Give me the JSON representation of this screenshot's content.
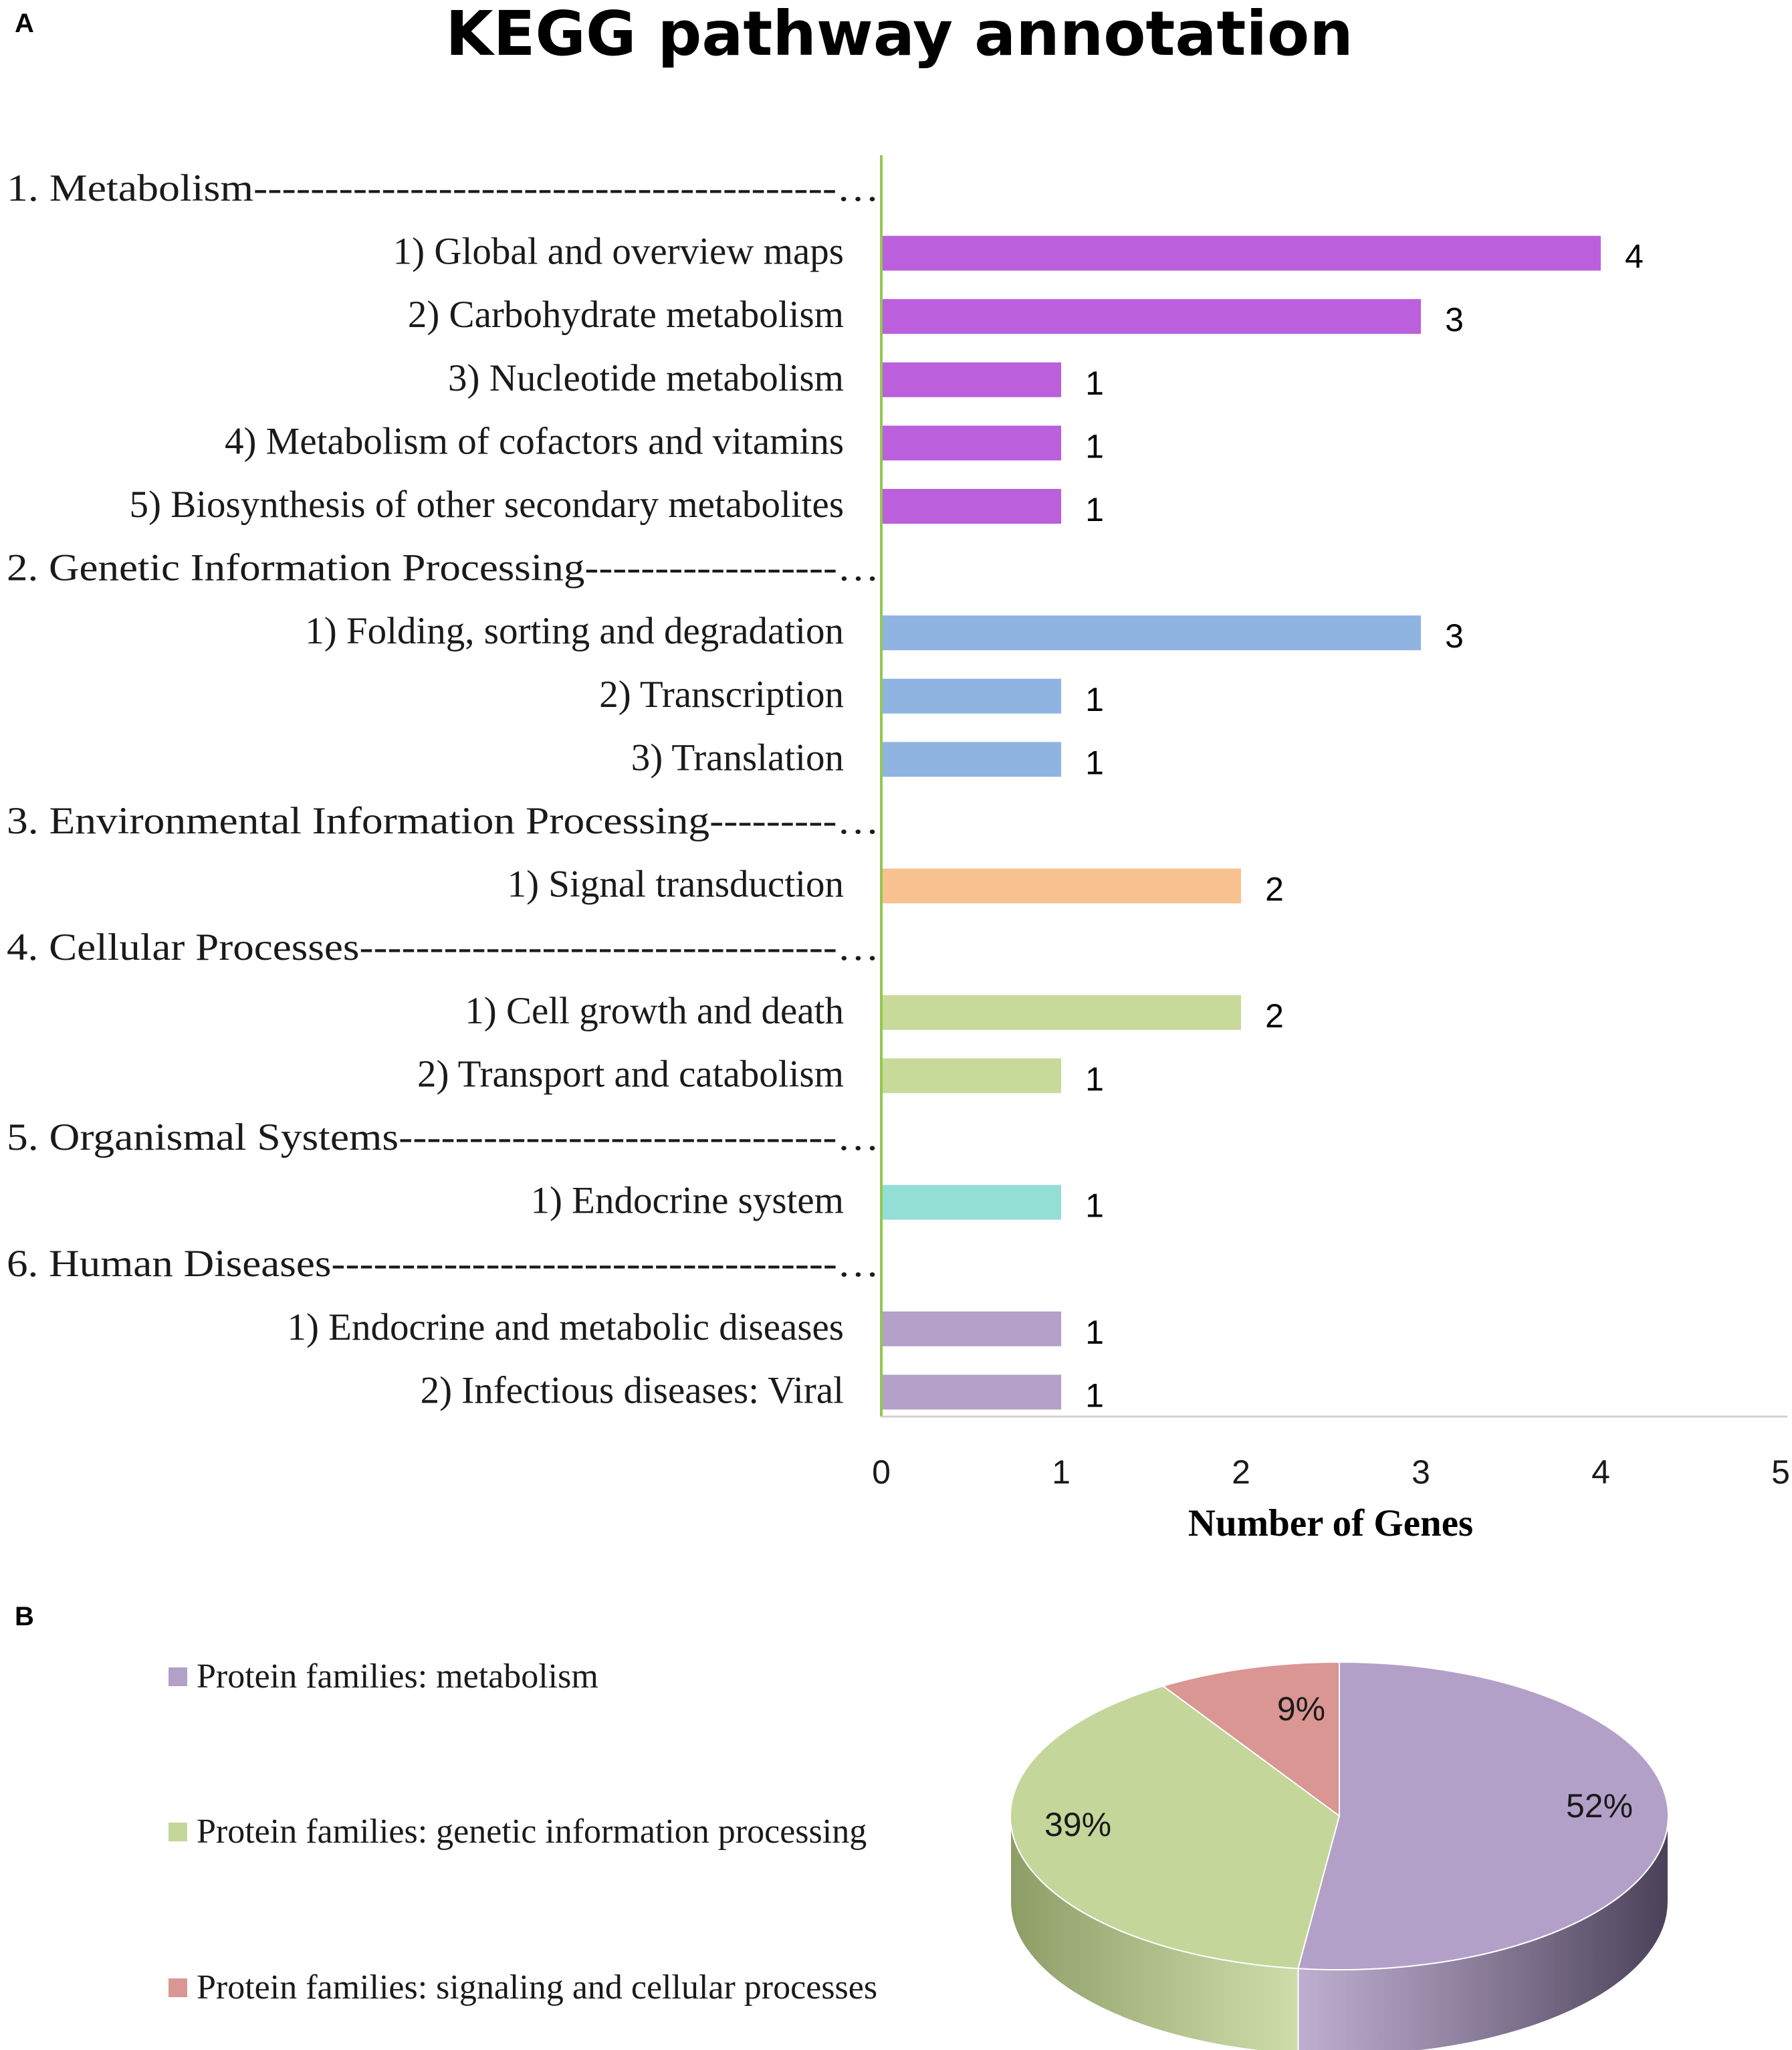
{
  "chart_data": [
    {
      "panel": "A",
      "type": "bar",
      "orientation": "horizontal",
      "title": "KEGG pathway annotation",
      "xlabel": "Number of Genes",
      "ylabel": "",
      "xlim": [
        0,
        5
      ],
      "xticks": [
        "0",
        "1",
        "2",
        "3",
        "4",
        "5"
      ],
      "rows": [
        {
          "label": "1. Metabolism-----------------------------------------…",
          "header": true
        },
        {
          "label": "1) Global and overview maps",
          "value": 4,
          "color": "#bb5fdc"
        },
        {
          "label": "2) Carbohydrate metabolism",
          "value": 3,
          "color": "#bb5fdc"
        },
        {
          "label": "3) Nucleotide metabolism",
          "value": 1,
          "color": "#bb5fdc"
        },
        {
          "label": "4) Metabolism of cofactors and vitamins",
          "value": 1,
          "color": "#bb5fdc"
        },
        {
          "label": "5) Biosynthesis of other secondary metabolites",
          "value": 1,
          "color": "#bb5fdc"
        },
        {
          "label": "2. Genetic Information Processing------------------…",
          "header": true
        },
        {
          "label": "1) Folding, sorting and degradation",
          "value": 3,
          "color": "#8fb4e2"
        },
        {
          "label": "2) Transcription",
          "value": 1,
          "color": "#8fb4e2"
        },
        {
          "label": "3) Translation",
          "value": 1,
          "color": "#8fb4e2"
        },
        {
          "label": "3. Environmental Information Processing---------…",
          "header": true
        },
        {
          "label": "1) Signal transduction",
          "value": 2,
          "color": "#f8c190"
        },
        {
          "label": "4. Cellular Processes----------------------------------…",
          "header": true
        },
        {
          "label": "1) Cell growth and death",
          "value": 2,
          "color": "#c8da9a"
        },
        {
          "label": "2) Transport and catabolism",
          "value": 1,
          "color": "#c8da9a"
        },
        {
          "label": "5. Organismal Systems-------------------------------…",
          "header": true
        },
        {
          "label": "1) Endocrine system",
          "value": 1,
          "color": "#93dfd6"
        },
        {
          "label": "6. Human Diseases------------------------------------…",
          "header": true
        },
        {
          "label": "1) Endocrine and metabolic diseases",
          "value": 1,
          "color": "#b4a0c8"
        },
        {
          "label": "2) Infectious diseases: Viral",
          "value": 1,
          "color": "#b4a0c8"
        }
      ]
    },
    {
      "panel": "B",
      "type": "pie",
      "style": "3d",
      "legend_position": "left",
      "slices": [
        {
          "label": "Protein families: metabolism",
          "value": 52,
          "display": "52%",
          "color": "#b3a0c8",
          "side": "#4a4158"
        },
        {
          "label": "Protein families: genetic information processing",
          "value": 39,
          "display": "39%",
          "color": "#c4d69a",
          "side": "#8e9c66"
        },
        {
          "label": "Protein families: signaling and cellular processes",
          "value": 9,
          "display": "9%",
          "color": "#d99693",
          "side": "#8a5a58"
        }
      ]
    }
  ]
}
